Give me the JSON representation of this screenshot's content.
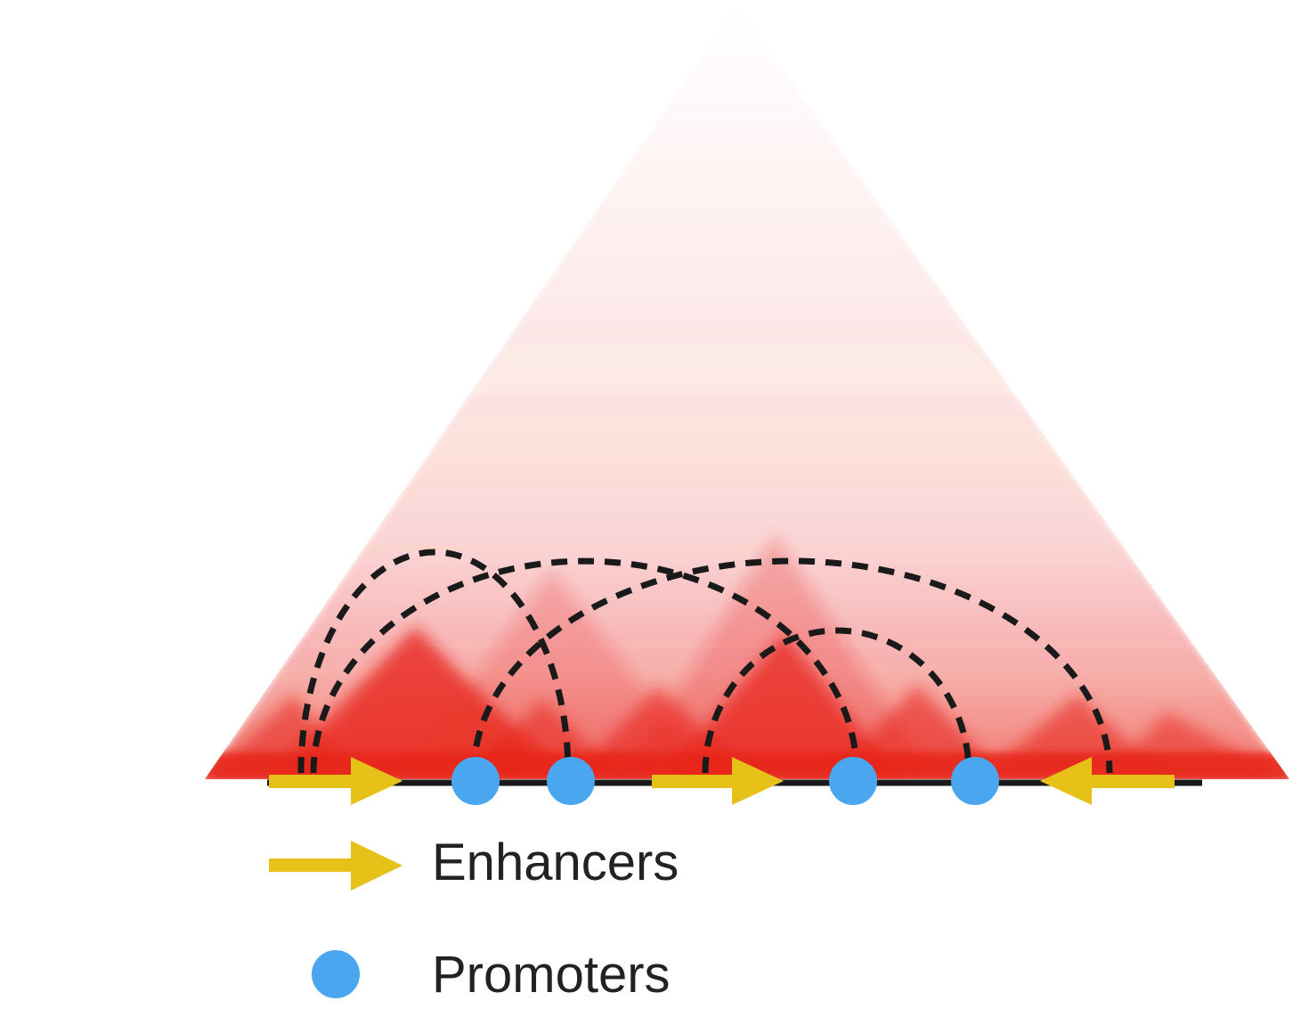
{
  "colors": {
    "heatmap": "#e8231a",
    "chromatin": "#1a1a1a",
    "enhancer": "#e6c219",
    "promoter": "#4aa6ef",
    "loop": "#1a1a1a",
    "text": "#222222"
  },
  "icons": {
    "enhancer": "arrow-icon",
    "promoter": "circle-icon"
  },
  "legend": {
    "enhancers_label": "Enhancers",
    "promoters_label": "Promoters"
  }
}
